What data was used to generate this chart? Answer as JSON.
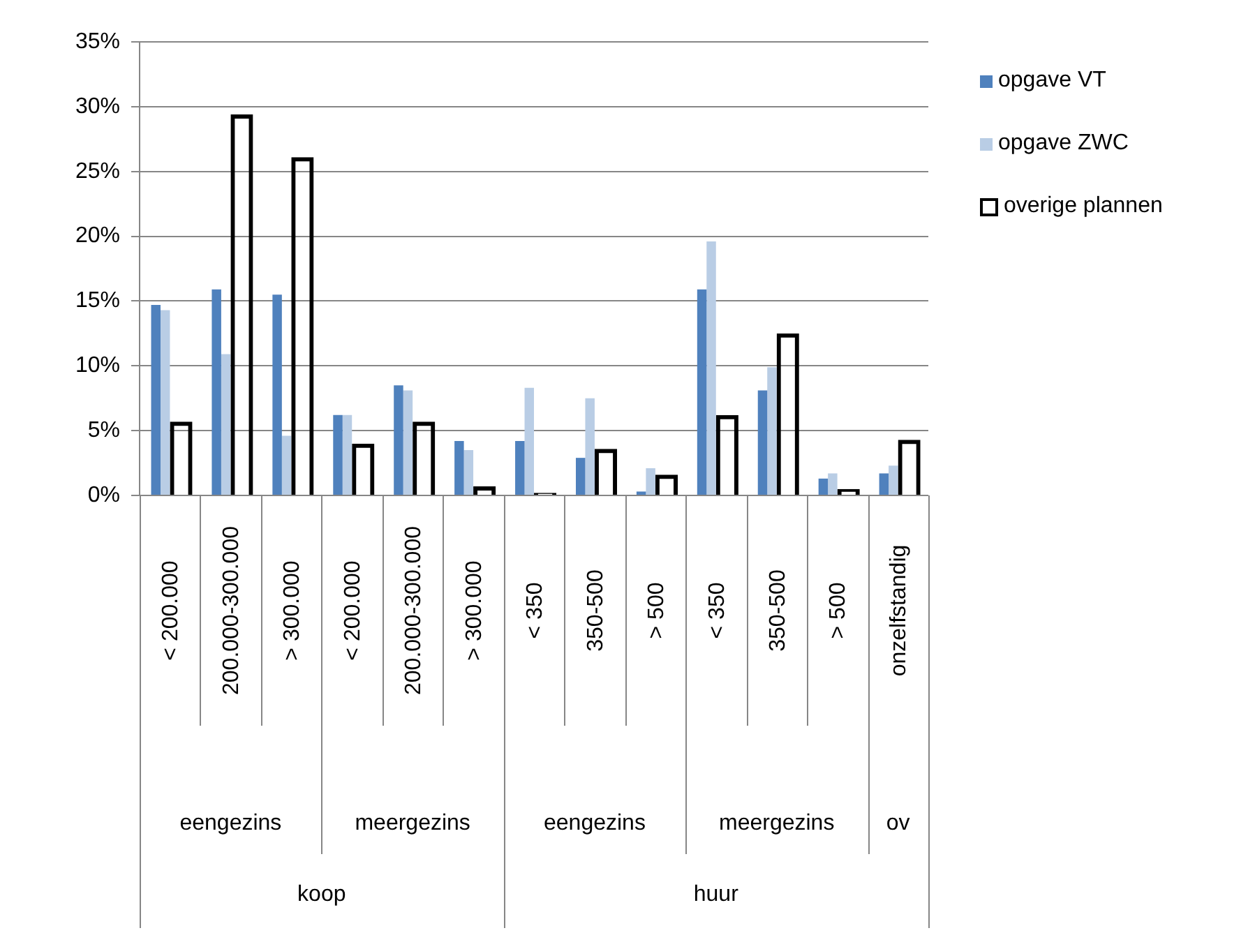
{
  "chart_data": {
    "type": "bar",
    "categories": [
      "< 200.000",
      "200.000-300.000",
      "> 300.000",
      "< 200.000",
      "200.000-300.000",
      "> 300.000",
      "< 350",
      "350-500",
      "> 500",
      "< 350",
      "350-500",
      "> 500",
      "onzelfstandig"
    ],
    "series": [
      {
        "name": "opgave VT",
        "color": "#4f81bd",
        "values": [
          14.7,
          15.9,
          15.5,
          6.2,
          8.5,
          4.2,
          4.2,
          2.9,
          0.3,
          15.9,
          8.1,
          1.3,
          1.7
        ]
      },
      {
        "name": "opgave ZWC",
        "color": "#b9cde5",
        "values": [
          14.3,
          10.9,
          4.6,
          6.2,
          8.1,
          3.5,
          8.3,
          7.5,
          2.1,
          19.6,
          9.9,
          1.7,
          2.3
        ]
      },
      {
        "name": "overige plannen",
        "color": "#000000",
        "values": [
          5.7,
          29.4,
          26.1,
          4.0,
          5.7,
          0.7,
          0.2,
          3.6,
          1.6,
          6.2,
          12.5,
          0.5,
          4.3
        ]
      }
    ],
    "annotations": [
      "eengezins",
      "meergezins",
      "eengezins",
      "meergezins",
      "ov",
      "koop",
      "huur"
    ],
    "ylim": [
      0,
      35
    ],
    "yticks": [
      {
        "value": 0,
        "label": "0%"
      },
      {
        "value": 5,
        "label": "5%"
      },
      {
        "value": 10,
        "label": "10%"
      },
      {
        "value": 15,
        "label": "15%"
      },
      {
        "value": 20,
        "label": "20%"
      },
      {
        "value": 25,
        "label": "25%"
      },
      {
        "value": 30,
        "label": "30%"
      },
      {
        "value": 35,
        "label": "35%"
      }
    ],
    "grid": "y",
    "legend": "right"
  }
}
